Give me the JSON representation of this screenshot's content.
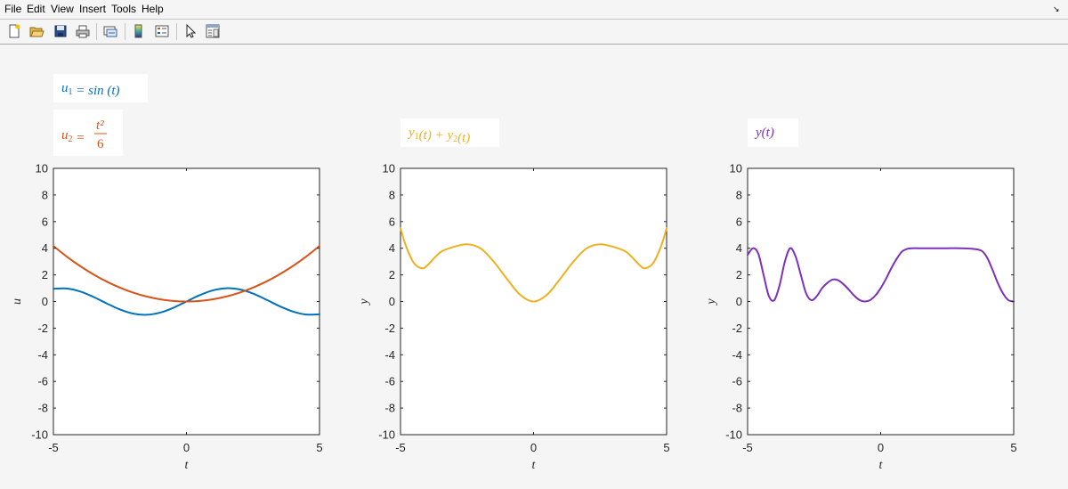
{
  "menu": {
    "items": [
      "File",
      "Edit",
      "View",
      "Insert",
      "Tools",
      "Help"
    ]
  },
  "toolbar": {
    "buttons": [
      {
        "name": "new-figure-icon"
      },
      {
        "name": "open-file-icon"
      },
      {
        "name": "save-figure-icon"
      },
      {
        "name": "print-figure-icon"
      },
      {
        "name": "link-plot-icon"
      },
      {
        "name": "insert-colorbar-icon"
      },
      {
        "name": "insert-legend-icon"
      },
      {
        "name": "edit-plot-arrow-icon"
      },
      {
        "name": "property-inspector-icon"
      }
    ]
  },
  "colors": {
    "blue": "#0072bd",
    "orange": "#d95319",
    "yellow": "#edb120",
    "purple": "#7e2fbe",
    "axes": "#262626"
  },
  "chart_data": [
    {
      "type": "line",
      "xlabel": "t",
      "ylabel": "u",
      "xlim": [
        -5,
        5
      ],
      "ylim": [
        -10,
        10
      ],
      "xticks": [
        -5,
        0,
        5
      ],
      "yticks": [
        -10,
        -8,
        -6,
        -4,
        -2,
        0,
        2,
        4,
        6,
        8,
        10
      ],
      "grid": false,
      "legend_position": "above-left, stacked",
      "series": [
        {
          "legend_parts": [
            {
              "t": "u",
              "s": "1"
            },
            {
              "t": " = sin (t)"
            }
          ],
          "color": "#0072bd",
          "x": [
            -5,
            -4.5,
            -4,
            -3.5,
            -3,
            -2.5,
            -2,
            -1.5,
            -1,
            -0.5,
            0,
            0.5,
            1,
            1.5,
            2,
            2.5,
            3,
            3.5,
            4,
            4.5,
            5
          ],
          "y": [
            0.959,
            0.978,
            0.757,
            0.351,
            -0.141,
            -0.598,
            -0.909,
            -0.997,
            -0.841,
            -0.479,
            0,
            0.479,
            0.841,
            0.997,
            0.909,
            0.598,
            0.141,
            -0.351,
            -0.757,
            -0.978,
            -0.959
          ]
        },
        {
          "legend_parts": [
            {
              "t": "u",
              "s": "2"
            },
            {
              "t": " = "
            }
          ],
          "legend_fraction": {
            "num": "t²",
            "den": "6"
          },
          "color": "#d95319",
          "x": [
            -5,
            -4.5,
            -4,
            -3.5,
            -3,
            -2.5,
            -2,
            -1.5,
            -1,
            -0.5,
            0,
            0.5,
            1,
            1.5,
            2,
            2.5,
            3,
            3.5,
            4,
            4.5,
            5
          ],
          "y": [
            4.167,
            3.375,
            2.667,
            2.042,
            1.5,
            1.042,
            0.667,
            0.375,
            0.167,
            0.042,
            0,
            0.042,
            0.167,
            0.375,
            0.667,
            1.042,
            1.5,
            2.042,
            2.667,
            3.375,
            4.167
          ]
        }
      ]
    },
    {
      "type": "line",
      "xlabel": "t",
      "ylabel": "y",
      "xlim": [
        -5,
        5
      ],
      "ylim": [
        -10,
        10
      ],
      "xticks": [
        -5,
        0,
        5
      ],
      "yticks": [
        -10,
        -8,
        -6,
        -4,
        -2,
        0,
        2,
        4,
        6,
        8,
        10
      ],
      "grid": false,
      "legend_position": "above-left",
      "series": [
        {
          "legend_parts": [
            {
              "t": "y",
              "s": "1"
            },
            {
              "t": "(t) + "
            },
            {
              "t": "y",
              "s": "2"
            },
            {
              "t": "(t)"
            }
          ],
          "color": "#edb120",
          "x": [
            -5,
            -4.8,
            -4.5,
            -4.2,
            -4,
            -3.5,
            -3,
            -2.5,
            -2,
            -1.5,
            -1,
            -0.5,
            0,
            0.5,
            1,
            1.5,
            2,
            2.5,
            3,
            3.5,
            4,
            4.2,
            4.5,
            4.8,
            5
          ],
          "y": [
            5.5,
            4.2,
            2.9,
            2.5,
            2.7,
            3.7,
            4.1,
            4.3,
            4.0,
            3.0,
            1.7,
            0.5,
            0,
            0.5,
            1.7,
            3.0,
            4.0,
            4.3,
            4.1,
            3.7,
            2.7,
            2.5,
            2.9,
            4.2,
            5.5
          ]
        }
      ]
    },
    {
      "type": "line",
      "xlabel": "t",
      "ylabel": "y",
      "xlim": [
        -5,
        5
      ],
      "ylim": [
        -10,
        10
      ],
      "xticks": [
        -5,
        0,
        5
      ],
      "yticks": [
        -10,
        -8,
        -6,
        -4,
        -2,
        0,
        2,
        4,
        6,
        8,
        10
      ],
      "grid": false,
      "legend_position": "above-left",
      "series": [
        {
          "legend_parts": [
            {
              "t": "y(t)"
            }
          ],
          "color": "#7e2fbe",
          "x": [
            -5,
            -4.8,
            -4.6,
            -4.4,
            -4.2,
            -4,
            -3.8,
            -3.6,
            -3.4,
            -3.2,
            -3,
            -2.8,
            -2.6,
            -2.4,
            -2.2,
            -2,
            -1.8,
            -1.6,
            -1.4,
            -1.2,
            -1,
            -0.8,
            -0.6,
            -0.4,
            -0.2,
            0,
            0.2,
            0.4,
            0.6,
            0.8,
            1,
            1.2,
            1.4,
            1.6,
            1.8,
            2,
            2.5,
            3,
            3.5,
            3.8,
            4,
            4.2,
            4.4,
            4.6,
            4.8,
            5
          ],
          "y": [
            3.5,
            4.0,
            3.6,
            2.0,
            0.4,
            0.1,
            1.2,
            3.0,
            4.0,
            3.4,
            2.0,
            0.6,
            0.1,
            0.4,
            1.0,
            1.4,
            1.65,
            1.6,
            1.3,
            0.9,
            0.45,
            0.12,
            0,
            0.1,
            0.45,
            1.0,
            1.7,
            2.5,
            3.2,
            3.75,
            3.95,
            4.0,
            4.0,
            4.0,
            4.0,
            4.0,
            4.0,
            4.0,
            3.95,
            3.8,
            3.3,
            2.4,
            1.4,
            0.6,
            0.1,
            0
          ]
        }
      ]
    }
  ]
}
